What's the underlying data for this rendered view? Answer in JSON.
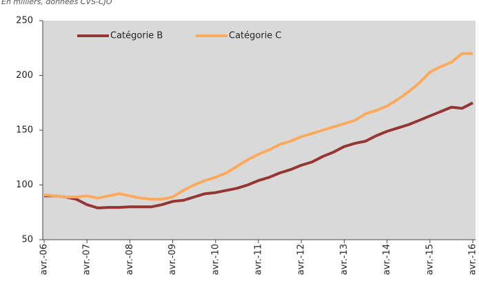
{
  "chart_data": {
    "type": "line",
    "subtitle": "En milliers, données CVS-CJO",
    "categories": [
      "avr.-06",
      null,
      null,
      null,
      "avr.-07",
      null,
      null,
      null,
      "avr.-08",
      null,
      null,
      null,
      "avr.-09",
      null,
      null,
      null,
      "avr.-10",
      null,
      null,
      null,
      "avr.-11",
      null,
      null,
      null,
      "avr.-12",
      null,
      null,
      null,
      "avr.-13",
      null,
      null,
      null,
      "avr.-14",
      null,
      null,
      null,
      "avr.-15",
      null,
      null,
      null,
      "avr.-16"
    ],
    "series": [
      {
        "name": "Catégorie B",
        "color": "#943634",
        "values": [
          90,
          90,
          89,
          87,
          82,
          79,
          79.5,
          79.5,
          80,
          80,
          80,
          82,
          85,
          86,
          89,
          92,
          93,
          95,
          97,
          100,
          104,
          107,
          111,
          114,
          118,
          121,
          126,
          130,
          135,
          138,
          140,
          145,
          149,
          152,
          155,
          159,
          163,
          167,
          171,
          170,
          175
        ]
      },
      {
        "name": "Catégorie C",
        "color": "#fbaa5c",
        "values": [
          91,
          90,
          89,
          89,
          90,
          88,
          90,
          92,
          90,
          88,
          87,
          87,
          89,
          95,
          100,
          104,
          107,
          111,
          117,
          123,
          128,
          132,
          137,
          140,
          144,
          147,
          150,
          153,
          156,
          159,
          165,
          168,
          172,
          178,
          185,
          193,
          203,
          208,
          212,
          220,
          220
        ]
      }
    ],
    "ylim": [
      50,
      250
    ],
    "yticks": [
      50,
      100,
      150,
      200,
      250
    ],
    "legend": "top-left"
  }
}
